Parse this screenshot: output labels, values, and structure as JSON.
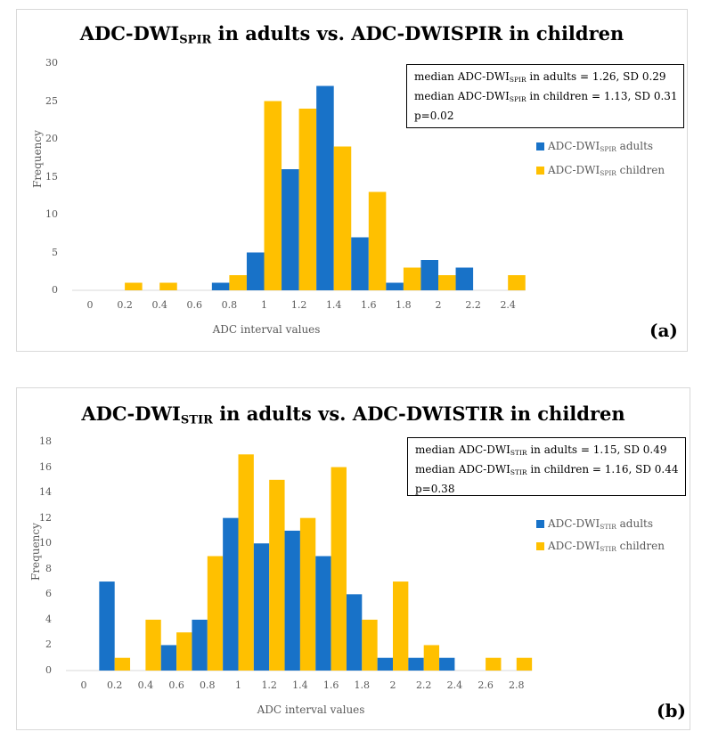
{
  "colors": {
    "adults": "#1872C8",
    "children": "#FFC000",
    "axis": "#d9d9d9"
  },
  "chart_data": [
    {
      "type": "bar",
      "panel_label": "(a)",
      "title_parts": [
        "ADC-DWI",
        "SPIR",
        " in adults vs. ADC-DWI",
        "SPIR",
        " in children"
      ],
      "xlabel": "ADC interval values",
      "ylabel": "Frequency",
      "ylim": [
        0,
        30
      ],
      "yticks": [
        0,
        5,
        10,
        15,
        20,
        25,
        30
      ],
      "categories": [
        "0",
        "0.2",
        "0.4",
        "0.6",
        "0.8",
        "1",
        "1.2",
        "1.4",
        "1.6",
        "1.8",
        "2",
        "2.2",
        "2.4"
      ],
      "series": [
        {
          "name": "adults",
          "legend_parts": [
            "ADC-DWI",
            "SPIR",
            " adults"
          ],
          "values": [
            0,
            0,
            0,
            0,
            1,
            5,
            16,
            27,
            7,
            1,
            4,
            3,
            0
          ]
        },
        {
          "name": "children",
          "legend_parts": [
            "ADC-DWI",
            "SPIR",
            " children"
          ],
          "values": [
            0,
            1,
            1,
            0,
            2,
            25,
            24,
            19,
            13,
            3,
            2,
            0,
            2
          ]
        }
      ],
      "stats": [
        [
          "median ADC-DWI",
          "SPIR",
          " in adults = 1.26, SD 0.29"
        ],
        [
          "median ADC-DWI",
          "SPIR",
          " in children = 1.13, SD 0.31"
        ],
        [
          "p=0.02",
          "",
          ""
        ]
      ],
      "grid": false,
      "legend_position": "right"
    },
    {
      "type": "bar",
      "panel_label": "(b)",
      "title_parts": [
        "ADC-DWI",
        "STIR",
        " in adults vs. ADC-DWI",
        "STIR",
        " in children"
      ],
      "xlabel": "ADC interval values",
      "ylabel": "Frequency",
      "ylim": [
        0,
        18
      ],
      "yticks": [
        0,
        2,
        4,
        6,
        8,
        10,
        12,
        14,
        16,
        18
      ],
      "categories": [
        "0",
        "0.2",
        "0.4",
        "0.6",
        "0.8",
        "1",
        "1.2",
        "1.4",
        "1.6",
        "1.8",
        "2",
        "2.2",
        "2.4",
        "2.6",
        "2.8"
      ],
      "series": [
        {
          "name": "adults",
          "legend_parts": [
            "ADC-DWI",
            "STIR",
            " adults"
          ],
          "values": [
            0,
            7,
            0,
            2,
            4,
            12,
            10,
            11,
            9,
            6,
            1,
            1,
            1,
            0,
            0
          ]
        },
        {
          "name": "children",
          "legend_parts": [
            "ADC-DWI",
            "STIR",
            " children"
          ],
          "values": [
            0,
            1,
            4,
            3,
            9,
            17,
            15,
            12,
            16,
            4,
            7,
            2,
            0,
            1,
            1
          ]
        }
      ],
      "stats": [
        [
          "median ADC-DWI",
          "STIR",
          " in adults = 1.15, SD 0.49"
        ],
        [
          "median ADC-DWI",
          "STIR",
          " in children = 1.16, SD 0.44"
        ],
        [
          "p=0.38",
          "",
          ""
        ]
      ],
      "grid": false,
      "legend_position": "right"
    }
  ]
}
